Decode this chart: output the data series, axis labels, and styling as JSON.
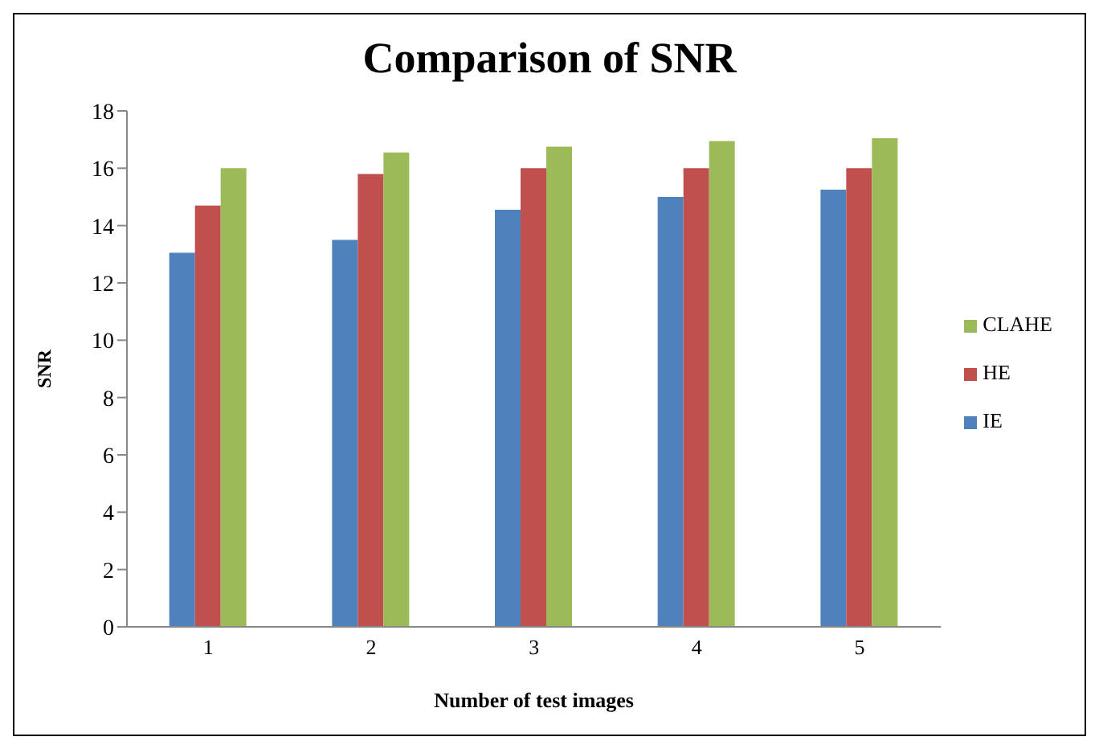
{
  "chart_data": {
    "type": "bar",
    "title": "Comparison of SNR",
    "xlabel": "Number of test images",
    "ylabel": "SNR",
    "categories": [
      "1",
      "2",
      "3",
      "4",
      "5"
    ],
    "series": [
      {
        "name": "IE",
        "color": "#4f81bd",
        "values": [
          13.05,
          13.5,
          14.55,
          15.0,
          15.25
        ]
      },
      {
        "name": "HE",
        "color": "#c0504d",
        "values": [
          14.7,
          15.8,
          16.0,
          16.0,
          16.0
        ]
      },
      {
        "name": "CLAHE",
        "color": "#9bbb59",
        "values": [
          16.0,
          16.55,
          16.75,
          16.95,
          17.05
        ]
      }
    ],
    "ylim": [
      0,
      18
    ],
    "yticks": [
      0,
      2,
      4,
      6,
      8,
      10,
      12,
      14,
      16,
      18
    ],
    "grid": false,
    "legend": "right"
  }
}
